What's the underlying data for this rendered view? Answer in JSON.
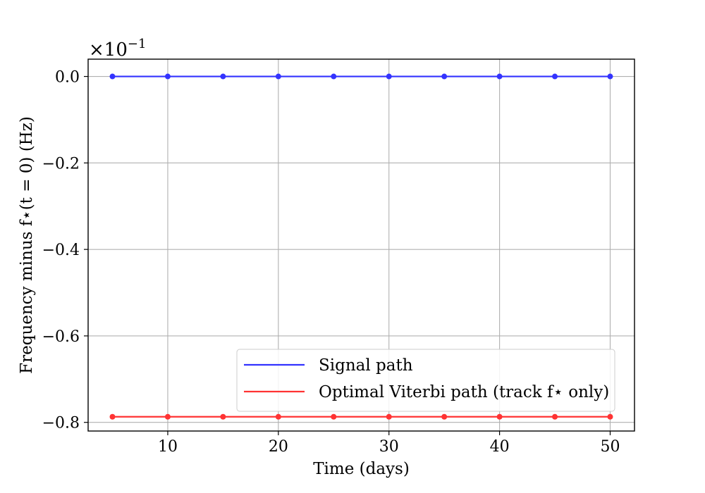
{
  "chart_data": {
    "type": "line",
    "x": [
      5,
      10,
      15,
      20,
      25,
      30,
      35,
      40,
      45,
      50
    ],
    "series": [
      {
        "name": "Signal path",
        "color": "#3333ff",
        "values": [
          0.0,
          0.0,
          0.0,
          0.0,
          0.0,
          0.0,
          0.0,
          0.0,
          0.0,
          0.0
        ]
      },
      {
        "name": "Optimal Viterbi path (track f⋆ only)",
        "color": "#ff3333",
        "values": [
          -0.787,
          -0.787,
          -0.787,
          -0.787,
          -0.787,
          -0.787,
          -0.787,
          -0.787,
          -0.787,
          -0.787
        ]
      }
    ],
    "xlabel": "Time (days)",
    "ylabel": "Frequency minus f⋆(t = 0) (Hz)",
    "scale_label": "×10",
    "scale_exponent": "−1",
    "xlim": [
      2.8,
      52.2
    ],
    "ylim": [
      -0.82,
      0.04
    ],
    "xticks": [
      10,
      20,
      30,
      40,
      50
    ],
    "xtick_labels": [
      "10",
      "20",
      "30",
      "40",
      "50"
    ],
    "yticks": [
      0.0,
      -0.2,
      -0.4,
      -0.6,
      -0.8
    ],
    "ytick_labels": [
      "0.0",
      "−0.2",
      "−0.4",
      "−0.6",
      "−0.8"
    ],
    "grid": true,
    "legend_position": "lower-right"
  }
}
